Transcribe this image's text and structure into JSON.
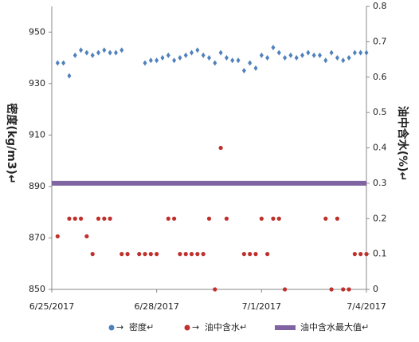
{
  "chart_data": {
    "type": "scatter",
    "y_label": "密度(kg/m3)↵",
    "y2_label": "油中含水(%)↵",
    "categories": [
      "6/25/2017",
      null,
      null,
      null,
      null,
      null,
      null,
      null,
      null,
      null,
      null,
      null,
      null,
      null,
      null,
      null,
      null,
      null,
      "6/28/2017",
      null,
      null,
      null,
      null,
      null,
      null,
      null,
      null,
      null,
      null,
      null,
      null,
      null,
      null,
      null,
      null,
      null,
      "7/1/2017",
      null,
      null,
      null,
      null,
      null,
      null,
      null,
      null,
      null,
      null,
      null,
      null,
      null,
      null,
      null,
      null,
      null,
      "7/4/2017"
    ],
    "ylim": [
      850,
      960
    ],
    "yticks": [
      850,
      870,
      890,
      910,
      930,
      950
    ],
    "y2lim": [
      0,
      0.8
    ],
    "y2ticks": [
      0,
      0.1,
      0.2,
      0.3,
      0.4,
      0.5,
      0.6,
      0.7,
      0.8
    ],
    "legend_arrow": "→",
    "legend": "bottom",
    "series": [
      {
        "name": "密度↵",
        "color": "#4f81bd",
        "marker": "diamond",
        "axis": "y",
        "values": [
          null,
          938,
          938,
          933,
          941,
          943,
          942,
          941,
          942,
          943,
          942,
          942,
          943,
          null,
          null,
          null,
          938,
          939,
          939,
          940,
          941,
          939,
          940,
          941,
          942,
          943,
          941,
          940,
          938,
          942,
          940,
          939,
          939,
          935,
          938,
          936,
          941,
          940,
          944,
          942,
          940,
          941,
          940,
          941,
          942,
          941,
          941,
          939,
          942,
          940,
          939,
          940,
          942,
          942,
          942
        ]
      },
      {
        "name": "油中含水↵",
        "color": "#c0302c",
        "marker": "circle",
        "axis": "y2",
        "values": [
          null,
          0.15,
          0.3,
          0.2,
          0.2,
          0.2,
          0.15,
          0.1,
          0.2,
          0.2,
          0.2,
          0.3,
          0.1,
          0.1,
          0.3,
          0.1,
          0.1,
          0.1,
          0.1,
          0.3,
          0.2,
          0.2,
          0.1,
          0.1,
          0.1,
          0.1,
          0.1,
          0.2,
          0,
          0.4,
          0.2,
          0.3,
          0.3,
          0.1,
          0.1,
          0.1,
          0.2,
          0.1,
          0.2,
          0.2,
          0,
          null,
          null,
          null,
          0.3,
          0.3,
          0.3,
          0.2,
          0,
          0.2,
          0,
          0,
          0.1,
          0.1,
          0.1
        ]
      },
      {
        "name": "油中含水最大值↵",
        "color": "#8064a2",
        "marker": "line",
        "axis": "y2",
        "values": [
          0.3,
          0.3,
          0.3,
          0.3,
          0.3,
          0.3,
          0.3,
          0.3,
          0.3,
          0.3,
          0.3,
          0.3,
          0.3,
          0.3,
          0.3,
          0.3,
          0.3,
          0.3,
          0.3,
          0.3,
          0.3,
          0.3,
          0.3,
          0.3,
          0.3,
          0.3,
          0.3,
          0.3,
          0.3,
          0.3,
          0.3,
          0.3,
          0.3,
          0.3,
          0.3,
          0.3,
          0.3,
          0.3,
          0.3,
          0.3,
          0.3,
          0.3,
          0.3,
          0.3,
          0.3,
          0.3,
          0.3,
          0.3,
          0.3,
          0.3,
          0.3,
          0.3,
          0.3,
          0.3,
          0.3
        ]
      }
    ]
  }
}
